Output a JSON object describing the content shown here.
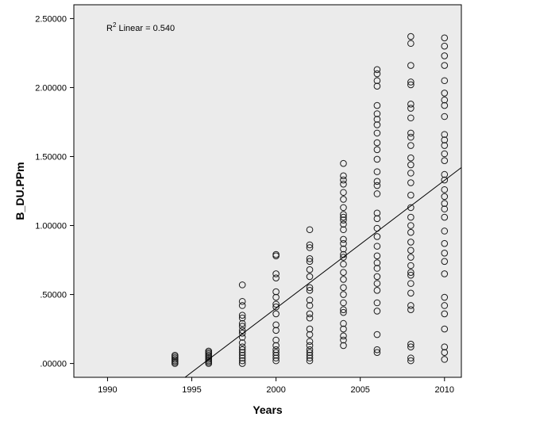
{
  "chart_data": {
    "type": "scatter",
    "xlabel": "Years",
    "ylabel": "B_DU.PPm",
    "xlim": [
      1988,
      2011
    ],
    "ylim": [
      -0.1,
      2.6
    ],
    "x_ticks": [
      1990,
      1995,
      2000,
      2005,
      2010
    ],
    "x_tick_labels": [
      "1990",
      "1995",
      "2000",
      "2005",
      "2010"
    ],
    "y_ticks": [
      0,
      0.5,
      1.0,
      1.5,
      2.0,
      2.5
    ],
    "y_tick_labels": [
      ".00000",
      ".50000",
      "1.00000",
      "1.50000",
      "2.00000",
      "2.50000"
    ],
    "annotation": {
      "prefix": "R",
      "superscript": "2",
      "text": " Linear = 0.540"
    },
    "fit_line": {
      "type": "linear",
      "x": [
        1994.6,
        2011
      ],
      "y": [
        -0.1,
        1.42
      ]
    },
    "background_color": "#ebebeb",
    "marker": "open-circle",
    "grid": false,
    "points": [
      [
        1994,
        0.0
      ],
      [
        1994,
        0.01
      ],
      [
        1994,
        0.02
      ],
      [
        1994,
        0.03
      ],
      [
        1994,
        0.04
      ],
      [
        1994,
        0.05
      ],
      [
        1994,
        0.06
      ],
      [
        1996,
        0.0
      ],
      [
        1996,
        0.01
      ],
      [
        1996,
        0.02
      ],
      [
        1996,
        0.03
      ],
      [
        1996,
        0.04
      ],
      [
        1996,
        0.05
      ],
      [
        1996,
        0.06
      ],
      [
        1996,
        0.07
      ],
      [
        1996,
        0.08
      ],
      [
        1996,
        0.09
      ],
      [
        1998,
        0.0
      ],
      [
        1998,
        0.02
      ],
      [
        1998,
        0.04
      ],
      [
        1998,
        0.06
      ],
      [
        1998,
        0.08
      ],
      [
        1998,
        0.1
      ],
      [
        1998,
        0.12
      ],
      [
        1998,
        0.15
      ],
      [
        1998,
        0.19
      ],
      [
        1998,
        0.22
      ],
      [
        1998,
        0.24
      ],
      [
        1998,
        0.27
      ],
      [
        1998,
        0.29
      ],
      [
        1998,
        0.33
      ],
      [
        1998,
        0.35
      ],
      [
        1998,
        0.42
      ],
      [
        1998,
        0.45
      ],
      [
        1998,
        0.57
      ],
      [
        2000,
        0.02
      ],
      [
        2000,
        0.04
      ],
      [
        2000,
        0.06
      ],
      [
        2000,
        0.08
      ],
      [
        2000,
        0.1
      ],
      [
        2000,
        0.13
      ],
      [
        2000,
        0.17
      ],
      [
        2000,
        0.24
      ],
      [
        2000,
        0.28
      ],
      [
        2000,
        0.36
      ],
      [
        2000,
        0.41
      ],
      [
        2000,
        0.43
      ],
      [
        2000,
        0.48
      ],
      [
        2000,
        0.52
      ],
      [
        2000,
        0.62
      ],
      [
        2000,
        0.65
      ],
      [
        2000,
        0.78
      ],
      [
        2000,
        0.79
      ],
      [
        2002,
        0.02
      ],
      [
        2002,
        0.04
      ],
      [
        2002,
        0.06
      ],
      [
        2002,
        0.08
      ],
      [
        2002,
        0.1
      ],
      [
        2002,
        0.13
      ],
      [
        2002,
        0.16
      ],
      [
        2002,
        0.21
      ],
      [
        2002,
        0.25
      ],
      [
        2002,
        0.33
      ],
      [
        2002,
        0.36
      ],
      [
        2002,
        0.42
      ],
      [
        2002,
        0.46
      ],
      [
        2002,
        0.53
      ],
      [
        2002,
        0.55
      ],
      [
        2002,
        0.63
      ],
      [
        2002,
        0.68
      ],
      [
        2002,
        0.74
      ],
      [
        2002,
        0.76
      ],
      [
        2002,
        0.84
      ],
      [
        2002,
        0.86
      ],
      [
        2002,
        0.97
      ],
      [
        2004,
        0.13
      ],
      [
        2004,
        0.17
      ],
      [
        2004,
        0.2
      ],
      [
        2004,
        0.25
      ],
      [
        2004,
        0.29
      ],
      [
        2004,
        0.37
      ],
      [
        2004,
        0.39
      ],
      [
        2004,
        0.44
      ],
      [
        2004,
        0.5
      ],
      [
        2004,
        0.55
      ],
      [
        2004,
        0.61
      ],
      [
        2004,
        0.66
      ],
      [
        2004,
        0.72
      ],
      [
        2004,
        0.77
      ],
      [
        2004,
        0.79
      ],
      [
        2004,
        0.83
      ],
      [
        2004,
        0.87
      ],
      [
        2004,
        0.9
      ],
      [
        2004,
        0.97
      ],
      [
        2004,
        1.01
      ],
      [
        2004,
        1.04
      ],
      [
        2004,
        1.06
      ],
      [
        2004,
        1.08
      ],
      [
        2004,
        1.13
      ],
      [
        2004,
        1.19
      ],
      [
        2004,
        1.24
      ],
      [
        2004,
        1.3
      ],
      [
        2004,
        1.33
      ],
      [
        2004,
        1.36
      ],
      [
        2004,
        1.45
      ],
      [
        2006,
        0.08
      ],
      [
        2006,
        0.1
      ],
      [
        2006,
        0.21
      ],
      [
        2006,
        0.38
      ],
      [
        2006,
        0.44
      ],
      [
        2006,
        0.53
      ],
      [
        2006,
        0.58
      ],
      [
        2006,
        0.63
      ],
      [
        2006,
        0.69
      ],
      [
        2006,
        0.73
      ],
      [
        2006,
        0.78
      ],
      [
        2006,
        0.85
      ],
      [
        2006,
        0.92
      ],
      [
        2006,
        0.98
      ],
      [
        2006,
        1.05
      ],
      [
        2006,
        1.09
      ],
      [
        2006,
        1.23
      ],
      [
        2006,
        1.29
      ],
      [
        2006,
        1.32
      ],
      [
        2006,
        1.39
      ],
      [
        2006,
        1.48
      ],
      [
        2006,
        1.55
      ],
      [
        2006,
        1.6
      ],
      [
        2006,
        1.67
      ],
      [
        2006,
        1.73
      ],
      [
        2006,
        1.77
      ],
      [
        2006,
        1.81
      ],
      [
        2006,
        1.87
      ],
      [
        2006,
        2.01
      ],
      [
        2006,
        2.05
      ],
      [
        2006,
        2.1
      ],
      [
        2006,
        2.13
      ],
      [
        2008,
        0.02
      ],
      [
        2008,
        0.04
      ],
      [
        2008,
        0.12
      ],
      [
        2008,
        0.14
      ],
      [
        2008,
        0.39
      ],
      [
        2008,
        0.42
      ],
      [
        2008,
        0.51
      ],
      [
        2008,
        0.58
      ],
      [
        2008,
        0.64
      ],
      [
        2008,
        0.66
      ],
      [
        2008,
        0.71
      ],
      [
        2008,
        0.77
      ],
      [
        2008,
        0.82
      ],
      [
        2008,
        0.88
      ],
      [
        2008,
        0.95
      ],
      [
        2008,
        1.0
      ],
      [
        2008,
        1.06
      ],
      [
        2008,
        1.13
      ],
      [
        2008,
        1.22
      ],
      [
        2008,
        1.31
      ],
      [
        2008,
        1.38
      ],
      [
        2008,
        1.44
      ],
      [
        2008,
        1.49
      ],
      [
        2008,
        1.58
      ],
      [
        2008,
        1.64
      ],
      [
        2008,
        1.67
      ],
      [
        2008,
        1.78
      ],
      [
        2008,
        1.85
      ],
      [
        2008,
        1.88
      ],
      [
        2008,
        2.02
      ],
      [
        2008,
        2.04
      ],
      [
        2008,
        2.16
      ],
      [
        2008,
        2.32
      ],
      [
        2008,
        2.37
      ],
      [
        2010,
        0.03
      ],
      [
        2010,
        0.08
      ],
      [
        2010,
        0.12
      ],
      [
        2010,
        0.25
      ],
      [
        2010,
        0.36
      ],
      [
        2010,
        0.42
      ],
      [
        2010,
        0.48
      ],
      [
        2010,
        0.65
      ],
      [
        2010,
        0.74
      ],
      [
        2010,
        0.8
      ],
      [
        2010,
        0.87
      ],
      [
        2010,
        0.96
      ],
      [
        2010,
        1.06
      ],
      [
        2010,
        1.12
      ],
      [
        2010,
        1.16
      ],
      [
        2010,
        1.21
      ],
      [
        2010,
        1.26
      ],
      [
        2010,
        1.33
      ],
      [
        2010,
        1.37
      ],
      [
        2010,
        1.47
      ],
      [
        2010,
        1.52
      ],
      [
        2010,
        1.58
      ],
      [
        2010,
        1.62
      ],
      [
        2010,
        1.66
      ],
      [
        2010,
        1.79
      ],
      [
        2010,
        1.87
      ],
      [
        2010,
        1.91
      ],
      [
        2010,
        1.96
      ],
      [
        2010,
        2.05
      ],
      [
        2010,
        2.16
      ],
      [
        2010,
        2.23
      ],
      [
        2010,
        2.3
      ],
      [
        2010,
        2.36
      ]
    ]
  }
}
